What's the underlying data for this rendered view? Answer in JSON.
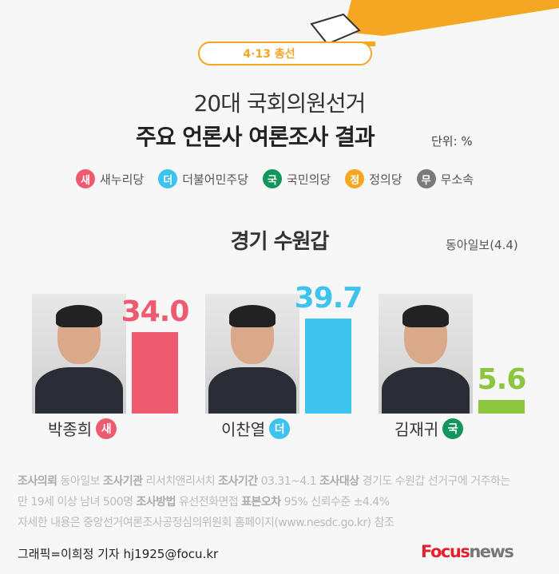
{
  "header": {
    "tag": "4·13 총선",
    "title_line1": "20대 국회의원선거",
    "title_line2": "주요 언론사 여론조사 결과",
    "unit": "단위: %"
  },
  "legend": [
    {
      "badge": "새",
      "label": "새누리당",
      "color": "#ee5a6f"
    },
    {
      "badge": "더",
      "label": "더불어민주당",
      "color": "#3ec3ee"
    },
    {
      "badge": "국",
      "label": "국민의당",
      "color": "#13955e"
    },
    {
      "badge": "정",
      "label": "정의당",
      "color": "#f5a623"
    },
    {
      "badge": "무",
      "label": "무소속",
      "color": "#7a7a7a"
    }
  ],
  "region": "경기 수원갑",
  "source": "동아일보(4.4)",
  "chart_data": {
    "type": "bar",
    "categories": [
      "박종희",
      "이찬열",
      "김재귀"
    ],
    "values": [
      34.0,
      39.7,
      5.6
    ],
    "labels": [
      "34.0",
      "39.7",
      "5.6"
    ],
    "parties": [
      "새",
      "더",
      "국"
    ],
    "colors": [
      "#ee5a6f",
      "#3ec3ee",
      "#8cc63f"
    ],
    "badge_colors": [
      "#ee5a6f",
      "#3ec3ee",
      "#13955e"
    ]
  },
  "notes": {
    "l1": [
      [
        "조사의뢰",
        "동아일보"
      ],
      [
        "조사기관",
        "리서치앤리서치"
      ],
      [
        "조사기간",
        "03.31~4.1"
      ],
      [
        "조사대상",
        "경기도 수원갑 선거구에 거주하는"
      ]
    ],
    "l2a": "만 19세 이상 남녀 500명",
    "l2": [
      [
        "조사방법",
        "유선전화면접"
      ],
      [
        "표본오차",
        "95%  신뢰수준 ±4.4%"
      ]
    ],
    "l3": "자세한 내용은 중앙선거여론조사공정심의위원회 홈페이지(www.nesdc.go.kr) 참조"
  },
  "credit": "그래픽=이희정 기자 hj1925@focu.kr",
  "logo": {
    "a": "Focus",
    "b": "news"
  }
}
